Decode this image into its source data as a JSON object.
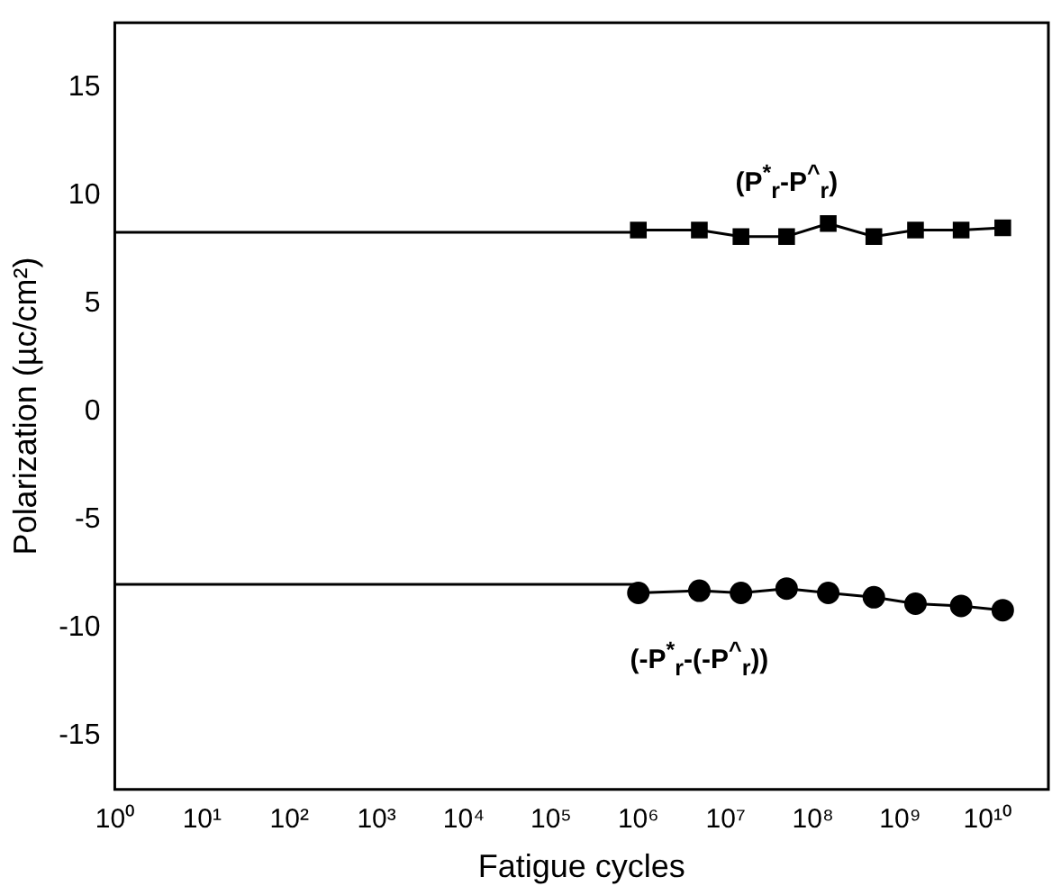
{
  "chart_data": {
    "type": "line",
    "xlabel": "Fatigue cycles",
    "ylabel": "Polarization (µc/cm²)",
    "log": "x",
    "xlim": [
      1,
      50000000000
    ],
    "ylim": [
      -17.5,
      18
    ],
    "xticks": [
      {
        "value": 1,
        "label": "10⁰"
      },
      {
        "value": 10,
        "label": "10¹"
      },
      {
        "value": 100,
        "label": "10²"
      },
      {
        "value": 1000,
        "label": "10³"
      },
      {
        "value": 10000,
        "label": "10⁴"
      },
      {
        "value": 100000,
        "label": "10⁵"
      },
      {
        "value": 1000000,
        "label": "10⁶"
      },
      {
        "value": 10000000,
        "label": "10⁷"
      },
      {
        "value": 100000000,
        "label": "10⁸"
      },
      {
        "value": 1000000000,
        "label": "10⁹"
      },
      {
        "value": 10000000000,
        "label": "10¹⁰"
      }
    ],
    "yticks": [
      -15,
      -10,
      -5,
      0,
      5,
      10,
      15
    ],
    "grid": false,
    "legend": false,
    "series": [
      {
        "color": "#000000",
        "marker": "square",
        "x": [
          1000000,
          5000000,
          15000000,
          50000000,
          150000000,
          500000000,
          1500000000,
          5000000000,
          15000000000
        ],
        "values": [
          8.4,
          8.4,
          8.1,
          8.1,
          8.7,
          8.1,
          8.4,
          8.4,
          8.5
        ]
      },
      {
        "color": "#000000",
        "marker": "circle",
        "x": [
          1000000,
          5000000,
          15000000,
          50000000,
          150000000,
          500000000,
          1500000000,
          5000000000,
          15000000000
        ],
        "values": [
          -8.4,
          -8.3,
          -8.4,
          -8.2,
          -8.4,
          -8.6,
          -8.9,
          -9.0,
          -9.2
        ]
      },
      {
        "color": "#000000",
        "marker": "none",
        "x": [
          1,
          1000000
        ],
        "values": [
          8.3,
          8.3
        ]
      },
      {
        "color": "#000000",
        "marker": "none",
        "x": [
          1,
          1000000
        ],
        "values": [
          -8.0,
          -8.0
        ]
      }
    ],
    "annotations": [
      "(P$^{*}$$_{r}$-P$^{^}$$_{r}$)",
      "(-P$^{*}$$_{r}$-(-P$^{^}$$_{r}$))"
    ]
  }
}
